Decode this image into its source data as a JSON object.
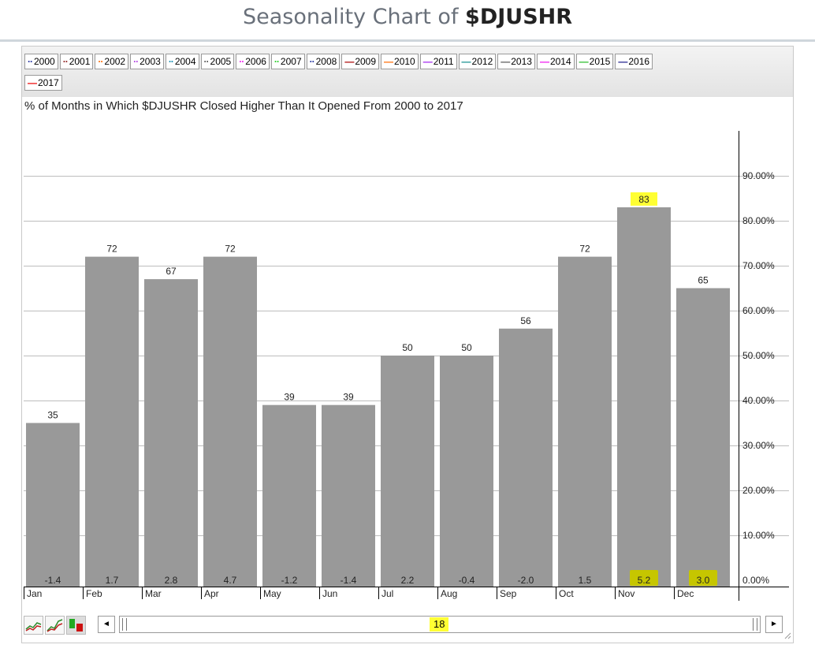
{
  "page": {
    "title_prefix": "Seasonality Chart of ",
    "title_symbol": "$DJUSHR"
  },
  "legend": {
    "row1": [
      {
        "label": "2000",
        "color": "#1f2f9f",
        "style": "dotted"
      },
      {
        "label": "2001",
        "color": "#8b1a1a",
        "style": "dotted"
      },
      {
        "label": "2002",
        "color": "#ff6a00",
        "style": "dotted"
      },
      {
        "label": "2003",
        "color": "#b040e0",
        "style": "dotted"
      },
      {
        "label": "2004",
        "color": "#108cb0",
        "style": "dotted"
      },
      {
        "label": "2005",
        "color": "#555555",
        "style": "dotted"
      },
      {
        "label": "2006",
        "color": "#ee20ee",
        "style": "dotted"
      },
      {
        "label": "2007",
        "color": "#22cc22",
        "style": "dotted"
      },
      {
        "label": "2008",
        "color": "#1f2f9f",
        "style": "dotted"
      },
      {
        "label": "2009",
        "color": "#aa0000",
        "style": "solid"
      },
      {
        "label": "2010",
        "color": "#ff6a00",
        "style": "solid"
      },
      {
        "label": "2011",
        "color": "#a020f0",
        "style": "solid"
      },
      {
        "label": "2012",
        "color": "#108c8c",
        "style": "solid"
      },
      {
        "label": "2013",
        "color": "#555555",
        "style": "solid"
      },
      {
        "label": "2014",
        "color": "#ee10ee",
        "style": "solid"
      },
      {
        "label": "2015",
        "color": "#22bb22",
        "style": "solid"
      },
      {
        "label": "2016",
        "color": "#1a1a8a",
        "style": "solid"
      }
    ],
    "row2": [
      {
        "label": "2017",
        "color": "#ee0000",
        "style": "solid"
      }
    ]
  },
  "chart": {
    "subtitle": "% of Months in Which $DJUSHR Closed Higher Than It Opened From 2000 to 2017"
  },
  "chart_data": {
    "type": "bar",
    "categories": [
      "Jan",
      "Feb",
      "Mar",
      "Apr",
      "May",
      "Jun",
      "Jul",
      "Aug",
      "Sep",
      "Oct",
      "Nov",
      "Dec"
    ],
    "series": [
      {
        "values": [
          35,
          72,
          67,
          72,
          39,
          39,
          50,
          50,
          56,
          72,
          83,
          65
        ]
      }
    ],
    "bar_bottom_labels": [
      "-1.4",
      "1.7",
      "2.8",
      "4.7",
      "-1.2",
      "-1.4",
      "2.2",
      "-0.4",
      "-2.0",
      "1.5",
      "5.2",
      "3.0"
    ],
    "highlighted_top": [
      10
    ],
    "highlighted_bottom": [
      10,
      11
    ],
    "yticks": [
      "0.00%",
      "10.00%",
      "20.00%",
      "30.00%",
      "40.00%",
      "50.00%",
      "60.00%",
      "70.00%",
      "80.00%",
      "90.00%"
    ],
    "ylim": [
      0,
      100
    ],
    "bar_color": "#999999",
    "highlight_color": "#ffff33",
    "highlight_bottom_color": "#c6c600",
    "grid": true
  },
  "toolbar": {
    "year_count": "18",
    "scroll_left": "◄",
    "scroll_right": "►"
  }
}
